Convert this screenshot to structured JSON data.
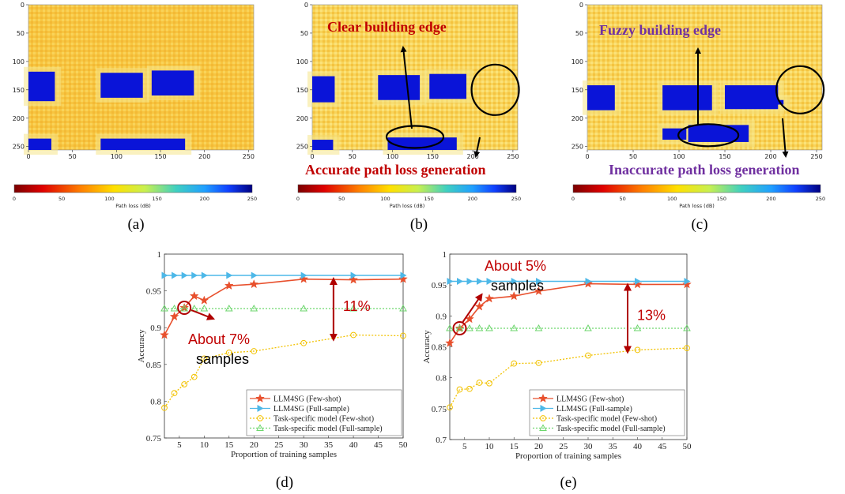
{
  "maps": [
    {
      "id": "a",
      "panel_label": "(a)",
      "x_ticks": [
        "0",
        "50",
        "100",
        "150",
        "200",
        "250"
      ],
      "y_ticks": [
        "0",
        "50",
        "100",
        "150",
        "200",
        "250"
      ],
      "colorbar_ticks": [
        "0",
        "50",
        "100",
        "150",
        "200",
        "250"
      ],
      "colorbar_label": "Path loss (dB)",
      "annotation_top": "",
      "annotation_bottom": ""
    },
    {
      "id": "b",
      "panel_label": "(b)",
      "x_ticks": [
        "0",
        "50",
        "100",
        "150",
        "200",
        "250"
      ],
      "y_ticks": [
        "0",
        "50",
        "100",
        "150",
        "200",
        "250"
      ],
      "colorbar_ticks": [
        "0",
        "50",
        "100",
        "150",
        "200",
        "250"
      ],
      "colorbar_label": "Path loss (dB)",
      "annotation_top": "Clear building edge",
      "annotation_bottom": "Accurate path loss generation"
    },
    {
      "id": "c",
      "panel_label": "(c)",
      "x_ticks": [
        "0",
        "50",
        "100",
        "150",
        "200",
        "250"
      ],
      "y_ticks": [
        "0",
        "50",
        "100",
        "150",
        "200",
        "250"
      ],
      "colorbar_ticks": [
        "0",
        "50",
        "100",
        "150",
        "200",
        "250"
      ],
      "colorbar_label": "Path loss (dB)",
      "annotation_top": "Fuzzy building edge",
      "annotation_bottom": "Inaccurate path loss generation"
    }
  ],
  "colors": {
    "llm_few": "#e8502d",
    "llm_full": "#4db8e8",
    "task_few": "#f2c200",
    "task_full": "#6cd66c",
    "annotation_red": "#c00000",
    "annotation_purple": "#7030a0"
  },
  "chart_data": [
    {
      "id": "d",
      "type": "line",
      "panel_label": "(d)",
      "xlabel": "Proportion of training samples",
      "ylabel": "Accuracy",
      "xlim": [
        2,
        50
      ],
      "ylim": [
        0.75,
        1.0
      ],
      "x_ticks": [
        "5",
        "10",
        "15",
        "20",
        "25",
        "30",
        "35",
        "40",
        "45",
        "50"
      ],
      "y_ticks": [
        "0.75",
        "0.8",
        "0.85",
        "0.9",
        "0.95",
        "1"
      ],
      "series": [
        {
          "name": "LLM4SG (Few-shot)",
          "key": "llm_few",
          "x": [
            2,
            4,
            6,
            8,
            10,
            15,
            20,
            30,
            40,
            50
          ],
          "values": [
            0.89,
            0.915,
            0.927,
            0.943,
            0.937,
            0.957,
            0.959,
            0.966,
            0.965,
            0.966
          ]
        },
        {
          "name": "LLM4SG (Full-sample)",
          "key": "llm_full",
          "x": [
            2,
            4,
            6,
            8,
            10,
            15,
            20,
            30,
            40,
            50
          ],
          "values": [
            0.971,
            0.971,
            0.971,
            0.971,
            0.971,
            0.971,
            0.971,
            0.971,
            0.971,
            0.971
          ]
        },
        {
          "name": "Task-specific model (Few-shot)",
          "key": "task_few",
          "x": [
            2,
            4,
            6,
            8,
            10,
            15,
            20,
            30,
            40,
            50
          ],
          "values": [
            0.791,
            0.811,
            0.823,
            0.833,
            0.858,
            0.866,
            0.868,
            0.879,
            0.89,
            0.889
          ]
        },
        {
          "name": "Task-specific model (Full-sample)",
          "key": "task_full",
          "x": [
            2,
            4,
            6,
            8,
            10,
            15,
            20,
            30,
            40,
            50
          ],
          "values": [
            0.926,
            0.926,
            0.926,
            0.926,
            0.926,
            0.926,
            0.926,
            0.926,
            0.926,
            0.926
          ]
        }
      ],
      "annotations": {
        "gap": "11%",
        "about": "About 7%",
        "samples": "samples"
      }
    },
    {
      "id": "e",
      "type": "line",
      "panel_label": "(e)",
      "xlabel": "Proportion of training samples",
      "ylabel": "Accuracy",
      "xlim": [
        2,
        50
      ],
      "ylim": [
        0.7,
        1.0
      ],
      "x_ticks": [
        "5",
        "10",
        "15",
        "20",
        "25",
        "30",
        "35",
        "40",
        "45",
        "50"
      ],
      "y_ticks": [
        "0.7",
        "0.75",
        "0.8",
        "0.85",
        "0.9",
        "0.95",
        "1"
      ],
      "series": [
        {
          "name": "LLM4SG (Few-shot)",
          "key": "llm_few",
          "x": [
            2,
            4,
            6,
            8,
            10,
            15,
            20,
            30,
            40,
            50
          ],
          "values": [
            0.856,
            0.88,
            0.895,
            0.915,
            0.928,
            0.932,
            0.94,
            0.952,
            0.951,
            0.951
          ]
        },
        {
          "name": "LLM4SG (Full-sample)",
          "key": "llm_full",
          "x": [
            2,
            4,
            6,
            8,
            10,
            15,
            20,
            30,
            40,
            50
          ],
          "values": [
            0.956,
            0.956,
            0.956,
            0.956,
            0.956,
            0.956,
            0.956,
            0.956,
            0.956,
            0.956
          ]
        },
        {
          "name": "Task-specific model (Few-shot)",
          "key": "task_few",
          "x": [
            2,
            4,
            6,
            8,
            10,
            15,
            20,
            30,
            40,
            50
          ],
          "values": [
            0.752,
            0.781,
            0.782,
            0.792,
            0.791,
            0.823,
            0.824,
            0.836,
            0.845,
            0.848
          ]
        },
        {
          "name": "Task-specific model (Full-sample)",
          "key": "task_full",
          "x": [
            2,
            4,
            6,
            8,
            10,
            15,
            20,
            30,
            40,
            50
          ],
          "values": [
            0.88,
            0.88,
            0.88,
            0.88,
            0.88,
            0.88,
            0.88,
            0.88,
            0.88,
            0.88
          ]
        }
      ],
      "annotations": {
        "gap": "13%",
        "about": "About 5%",
        "samples": "samples"
      }
    }
  ]
}
